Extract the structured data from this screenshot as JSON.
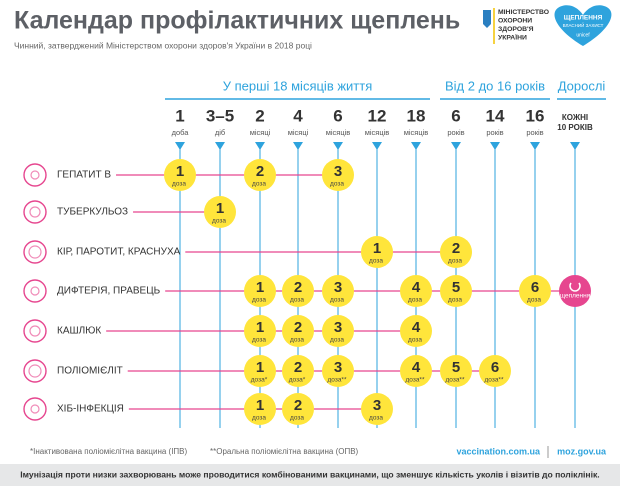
{
  "header": {
    "title": "Календар профілактичних щеплень",
    "subtitle": "Чинний, затверджений Міністерством охорони здоров'я України в 2018 році",
    "ministry": [
      "МІНІСТЕРСТВО",
      "ОХОРОНИ",
      "ЗДОРОВ'Я",
      "УКРАЇНИ"
    ],
    "badge": [
      "ЩЕПЛЕННЯ",
      "ВЛАСНИЙ ЗАХИСТ",
      "unicef"
    ]
  },
  "age_groups": [
    "У перші 18 місяців життя",
    "Від 2 до 16 років",
    "Дорослі"
  ],
  "columns": [
    {
      "number": "1",
      "unit": "доба"
    },
    {
      "number": "3–5",
      "unit": "діб"
    },
    {
      "number": "2",
      "unit": "місяці"
    },
    {
      "number": "4",
      "unit": "місяці"
    },
    {
      "number": "6",
      "unit": "місяців"
    },
    {
      "number": "12",
      "unit": "місяців"
    },
    {
      "number": "18",
      "unit": "місяців"
    },
    {
      "number": "6",
      "unit": "років"
    },
    {
      "number": "14",
      "unit": "років"
    },
    {
      "number": "16",
      "unit": "років"
    },
    {
      "lines": [
        "КОЖНІ",
        "10 РОКІВ"
      ]
    }
  ],
  "rows": [
    {
      "name": "ГЕПАТИТ В",
      "cells": [
        {
          "number": 1,
          "label": "доза"
        },
        null,
        {
          "number": 2,
          "label": "доза"
        },
        null,
        {
          "number": 3,
          "label": "доза"
        },
        null,
        null,
        null,
        null,
        null,
        null
      ]
    },
    {
      "name": "ТУБЕРКУЛЬОЗ",
      "cells": [
        null,
        {
          "number": 1,
          "label": "доза"
        },
        null,
        null,
        null,
        null,
        null,
        null,
        null,
        null,
        null
      ]
    },
    {
      "name": "КІР, ПАРОТИТ, КРАСНУХА",
      "cells": [
        null,
        null,
        null,
        null,
        null,
        {
          "number": 1,
          "label": "доза"
        },
        null,
        {
          "number": 2,
          "label": "доза"
        },
        null,
        null,
        null
      ]
    },
    {
      "name": "ДИФТЕРІЯ, ПРАВЕЦЬ",
      "cells": [
        null,
        null,
        {
          "number": 1,
          "label": "доза"
        },
        {
          "number": 2,
          "label": "доза"
        },
        {
          "number": 3,
          "label": "доза"
        },
        null,
        {
          "number": 4,
          "label": "доза"
        },
        {
          "number": 5,
          "label": "доза"
        },
        null,
        {
          "number": 6,
          "label": "доза"
        },
        {
          "label": "щеплення"
        }
      ]
    },
    {
      "name": "КАШЛЮК",
      "cells": [
        null,
        null,
        {
          "number": 1,
          "label": "доза"
        },
        {
          "number": 2,
          "label": "доза"
        },
        {
          "number": 3,
          "label": "доза"
        },
        null,
        {
          "number": 4,
          "label": "доза"
        },
        null,
        null,
        null,
        null
      ]
    },
    {
      "name": "ПОЛІОМІЄЛІТ",
      "cells": [
        null,
        null,
        {
          "number": 1,
          "label": "доза*"
        },
        {
          "number": 2,
          "label": "доза*"
        },
        {
          "number": 3,
          "label": "доза**"
        },
        null,
        {
          "number": 4,
          "label": "доза**"
        },
        {
          "number": 5,
          "label": "доза**"
        },
        {
          "number": 6,
          "label": "доза**"
        },
        null,
        null
      ]
    },
    {
      "name": "ХІБ-ІНФЕКЦІЯ",
      "cells": [
        null,
        null,
        {
          "number": 1,
          "label": "доза"
        },
        {
          "number": 2,
          "label": "доза"
        },
        null,
        {
          "number": 3,
          "label": "доза"
        },
        null,
        null,
        null,
        null,
        null
      ]
    }
  ],
  "footer": {
    "notes": [
      "*Інактивована поліомієлітна вакцина (ІПВ)",
      "**Оральна поліомієлітна вакцина (ОПВ)"
    ],
    "links": [
      "vaccination.com.ua",
      "moz.gov.ua"
    ],
    "banner": "Імунізація проти низки захворювань може проводитися комбінованими вакцинами, що зменшує кількість уколів і візитів до поліклінік."
  }
}
